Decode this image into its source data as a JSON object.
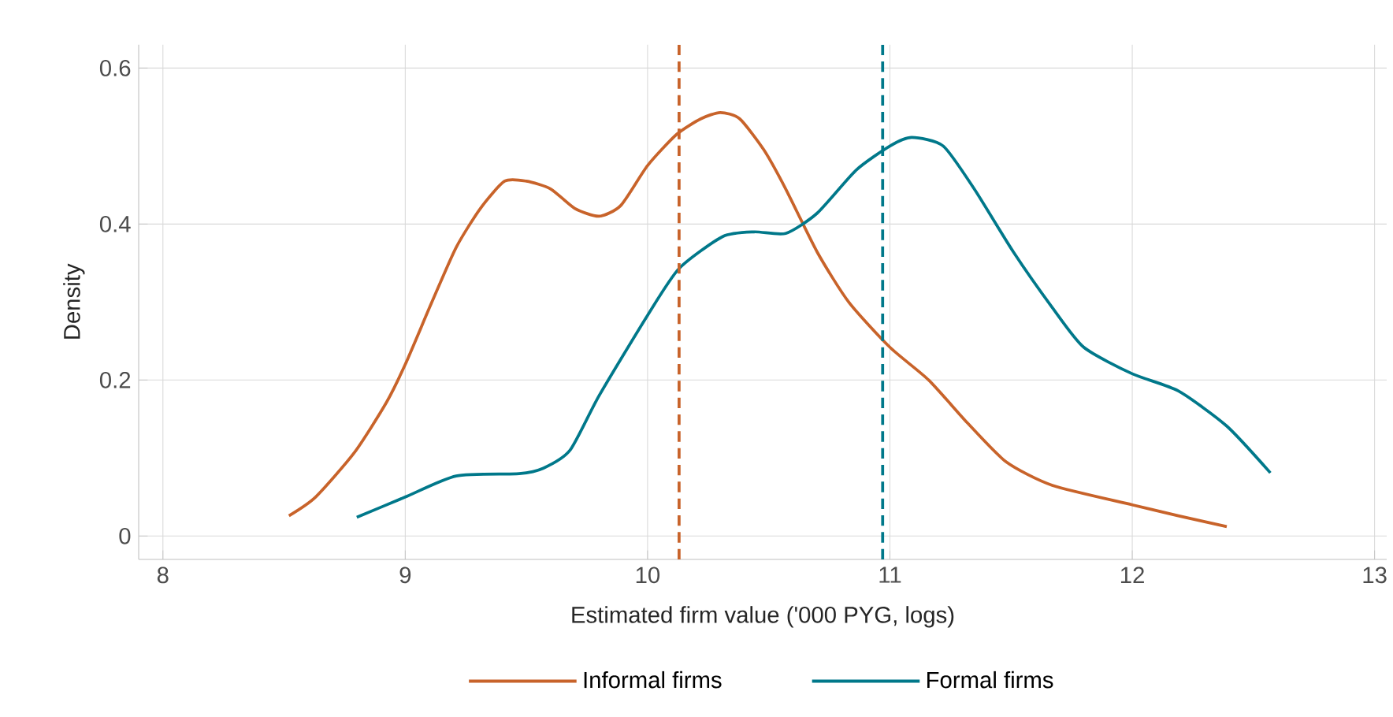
{
  "chart_data": {
    "type": "line",
    "xlabel": "Estimated firm value ('000 PYG, logs)",
    "ylabel": "Density",
    "xlim": [
      7.9,
      13.05
    ],
    "ylim": [
      -0.03,
      0.63
    ],
    "xticks": [
      8,
      9,
      10,
      11,
      12,
      13
    ],
    "yticks": [
      0,
      0.2,
      0.4,
      0.6
    ],
    "grid": true,
    "legend": "bottom",
    "series": [
      {
        "name": "Informal firms",
        "color": "#c8632a",
        "x": [
          8.52,
          8.63,
          8.79,
          8.92,
          9.0,
          9.11,
          9.21,
          9.31,
          9.41,
          9.5,
          9.6,
          9.7,
          9.8,
          9.89,
          10.0,
          10.12,
          10.22,
          10.3,
          10.38,
          10.48,
          10.57,
          10.7,
          10.83,
          11.0,
          11.16,
          11.32,
          11.48,
          11.67,
          12.0,
          12.19,
          12.39
        ],
        "values": [
          0.026,
          0.05,
          0.107,
          0.17,
          0.22,
          0.3,
          0.37,
          0.42,
          0.455,
          0.455,
          0.445,
          0.42,
          0.41,
          0.424,
          0.475,
          0.515,
          0.535,
          0.543,
          0.535,
          0.495,
          0.445,
          0.364,
          0.3,
          0.242,
          0.2,
          0.145,
          0.095,
          0.065,
          0.04,
          0.026,
          0.012
        ]
      },
      {
        "name": "Formal firms",
        "color": "#00788a",
        "x": [
          8.8,
          9.0,
          9.21,
          9.47,
          9.57,
          9.68,
          9.8,
          10.0,
          10.13,
          10.31,
          10.44,
          10.57,
          10.7,
          10.86,
          11.0,
          11.09,
          11.22,
          11.35,
          11.51,
          11.67,
          11.8,
          12.0,
          12.19,
          12.39,
          12.57
        ],
        "values": [
          0.024,
          0.05,
          0.077,
          0.08,
          0.087,
          0.11,
          0.18,
          0.283,
          0.343,
          0.384,
          0.39,
          0.388,
          0.414,
          0.469,
          0.5,
          0.511,
          0.5,
          0.444,
          0.364,
          0.293,
          0.242,
          0.208,
          0.186,
          0.141,
          0.081
        ]
      }
    ],
    "ref_lines": [
      {
        "axis": "x",
        "value": 10.13,
        "color": "#c8632a",
        "line_style": "dashed"
      },
      {
        "axis": "x",
        "value": 10.97,
        "color": "#00788a",
        "line_style": "dashed"
      }
    ]
  }
}
